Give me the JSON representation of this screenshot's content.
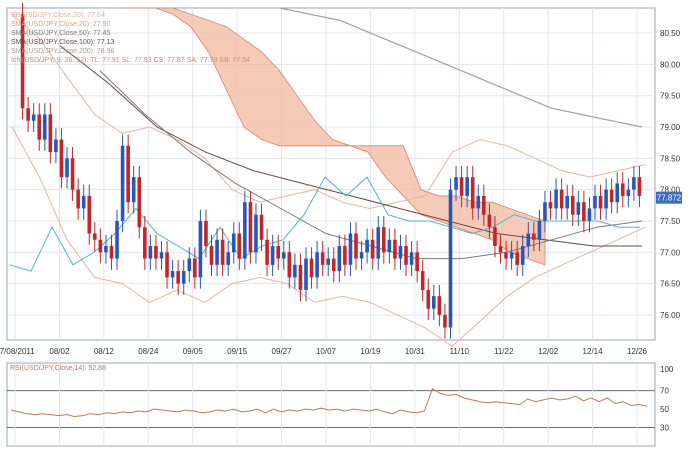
{
  "colors": {
    "bull": "#2a56b8",
    "bear": "#c0262c",
    "cloud_fill": "#f2b9a0",
    "cloud_edge": "#d9826a",
    "sma20": "#d9a27a",
    "sma50": "#7a7a7a",
    "sma100": "#6a4a44",
    "sma200": "#a8a090",
    "tenkan": "#4fb7c9",
    "bollinger": "#e2b69a",
    "rsi_line": "#c07a5a",
    "price_tag_bg": "#3b6cc8",
    "grid": "#e1e5ec",
    "axis": "#9aa4b2"
  },
  "chart_data": [
    {
      "type": "candlestick",
      "instrument": "USD/JPY",
      "legend": [
        {
          "text": "BB(USD/JPY,Close,20): 77.64",
          "color": "#e2b69a"
        },
        {
          "text": "SMA(USD/JPY,Close,20): 77.90",
          "color": "#d9a27a"
        },
        {
          "text": "SMA(USD/JPY,Close,50): 77.45",
          "color": "#7a7a7a"
        },
        {
          "text": "SMA(USD/JPY,Close,100): 77.13",
          "color": "#6a4a44"
        },
        {
          "text": "SMA(USD/JPY,Close,200): 78.98",
          "color": "#a8a090"
        },
        {
          "text": "Ichi(USD/JPY, 9, 26, 52): TL: 77.91 SL: 77.53 CS: 77.87 SA: 77.73 SB: 77.54",
          "color": "#d9826a"
        }
      ],
      "x_labels": [
        "07/08/2011",
        "08/02",
        "08/12",
        "08/24",
        "09/05",
        "09/15",
        "09/27",
        "10/07",
        "10/19",
        "10/31",
        "11/10",
        "11/22",
        "12/02",
        "12/14",
        "12/26"
      ],
      "y_ticks": [
        76.0,
        76.5,
        77.0,
        77.5,
        78.0,
        78.5,
        79.0,
        79.5,
        80.0,
        80.5
      ],
      "ylim": [
        75.6,
        80.9
      ],
      "grid": true,
      "last_price": "77.872",
      "closes": [
        80.8,
        79.3,
        79.1,
        79.2,
        78.8,
        79.2,
        78.6,
        78.8,
        78.2,
        78.5,
        78.0,
        77.7,
        77.9,
        77.3,
        77.2,
        77.0,
        77.1,
        76.9,
        77.5,
        78.7,
        77.8,
        78.2,
        77.4,
        76.9,
        77.1,
        76.9,
        77.0,
        76.6,
        76.7,
        76.5,
        76.7,
        76.9,
        76.6,
        77.5,
        77.1,
        76.8,
        77.2,
        76.8,
        77.0,
        77.3,
        76.9,
        77.8,
        77.0,
        77.6,
        77.2,
        76.8,
        77.1,
        76.9,
        77.0,
        76.6,
        76.8,
        76.4,
        76.9,
        76.6,
        77.0,
        76.8,
        76.9,
        76.7,
        77.1,
        76.8,
        77.3,
        76.9,
        77.0,
        77.2,
        76.9,
        77.4,
        77.0,
        77.2,
        76.9,
        77.1,
        76.8,
        77.0,
        76.7,
        76.4,
        76.1,
        76.3,
        76.0,
        75.8,
        78.0,
        78.2,
        77.9,
        78.2,
        77.7,
        77.9,
        77.6,
        77.4,
        77.1,
        77.0,
        76.9,
        77.0,
        76.8,
        77.1,
        77.3,
        77.2,
        77.5,
        77.8,
        77.7,
        78.0,
        77.7,
        77.9,
        77.6,
        77.8,
        77.5,
        77.7,
        77.9,
        77.7,
        78.0,
        77.8,
        78.1,
        77.9,
        78.0,
        78.2,
        77.9
      ],
      "ichimoku_cloud": {
        "span_a": [
          80.9,
          80.9,
          80.9,
          80.9,
          80.8,
          80.7,
          80.6,
          80.4,
          80.2,
          79.9,
          79.5,
          79.1,
          78.8,
          78.7,
          78.6,
          78.2,
          77.9,
          77.6,
          77.5,
          77.4,
          77.3,
          77.2,
          77.0,
          76.9,
          76.8
        ],
        "span_b": [
          80.9,
          80.9,
          80.9,
          80.8,
          80.6,
          80.2,
          79.6,
          79.0,
          78.8,
          78.7,
          78.7,
          78.7,
          78.7,
          78.7,
          78.7,
          78.7,
          78.7,
          78.0,
          77.9,
          77.9,
          77.8,
          77.8,
          77.7,
          77.6,
          77.5
        ]
      },
      "sma200": [
        80.9,
        80.8,
        80.7,
        80.5,
        80.3,
        80.1,
        79.9,
        79.7,
        79.5,
        79.3,
        79.2,
        79.1,
        79.0
      ],
      "sma100": [
        80.3,
        79.7,
        79.0,
        78.6,
        78.3,
        78.1,
        77.9,
        77.7,
        77.5,
        77.3,
        77.2,
        77.1,
        77.1
      ],
      "sma50": [
        79.9,
        79.2,
        78.6,
        78.1,
        77.7,
        77.3,
        77.1,
        76.9,
        76.9,
        77.0,
        77.2,
        77.4,
        77.5
      ],
      "tenkan": [
        76.8,
        76.7,
        77.4,
        76.8,
        77.0,
        77.3,
        77.7,
        77.3,
        77.1,
        76.9,
        77.4,
        76.9,
        77.1,
        77.2,
        77.6,
        78.2,
        77.9,
        78.2,
        77.6,
        77.5,
        77.5,
        77.4,
        77.3,
        77.4,
        77.6,
        77.5,
        77.5,
        77.5,
        77.5,
        77.4,
        77.4
      ],
      "bb_upper": [
        80.8,
        80.4,
        79.8,
        79.2,
        78.9,
        79.0,
        78.8,
        78.5,
        78.0,
        77.8,
        77.9,
        78.0,
        77.8,
        77.7,
        77.8,
        77.9,
        78.6,
        78.8,
        78.7,
        78.5,
        78.3,
        78.2,
        78.3,
        78.4
      ],
      "bb_lower": [
        79.0,
        78.2,
        77.2,
        76.6,
        76.5,
        76.2,
        76.4,
        76.2,
        76.5,
        76.6,
        76.5,
        76.2,
        76.3,
        76.2,
        76.0,
        75.8,
        75.5,
        75.9,
        76.3,
        76.6,
        76.8,
        77.0,
        77.2,
        77.4
      ]
    },
    {
      "type": "line",
      "label": "RSI(USD/JPY,Close,14): 52.88",
      "y_ticks": [
        30,
        50,
        70,
        100
      ],
      "ylim": [
        10,
        100
      ],
      "reference_levels": [
        30,
        70
      ],
      "values": [
        49,
        47,
        45,
        44,
        45,
        44,
        43,
        44,
        42,
        43,
        45,
        44,
        46,
        45,
        47,
        46,
        48,
        47,
        50,
        49,
        48,
        47,
        49,
        48,
        46,
        47,
        49,
        48,
        50,
        47,
        48,
        50,
        46,
        50,
        47,
        49,
        48,
        50,
        49,
        51,
        49,
        50,
        48,
        50,
        49,
        48,
        50,
        47,
        45,
        49,
        47,
        46,
        48,
        72,
        67,
        65,
        66,
        62,
        60,
        58,
        57,
        58,
        57,
        56,
        55,
        61,
        58,
        60,
        62,
        60,
        61,
        64,
        59,
        62,
        58,
        62,
        56,
        58,
        54,
        55,
        53
      ]
    }
  ]
}
